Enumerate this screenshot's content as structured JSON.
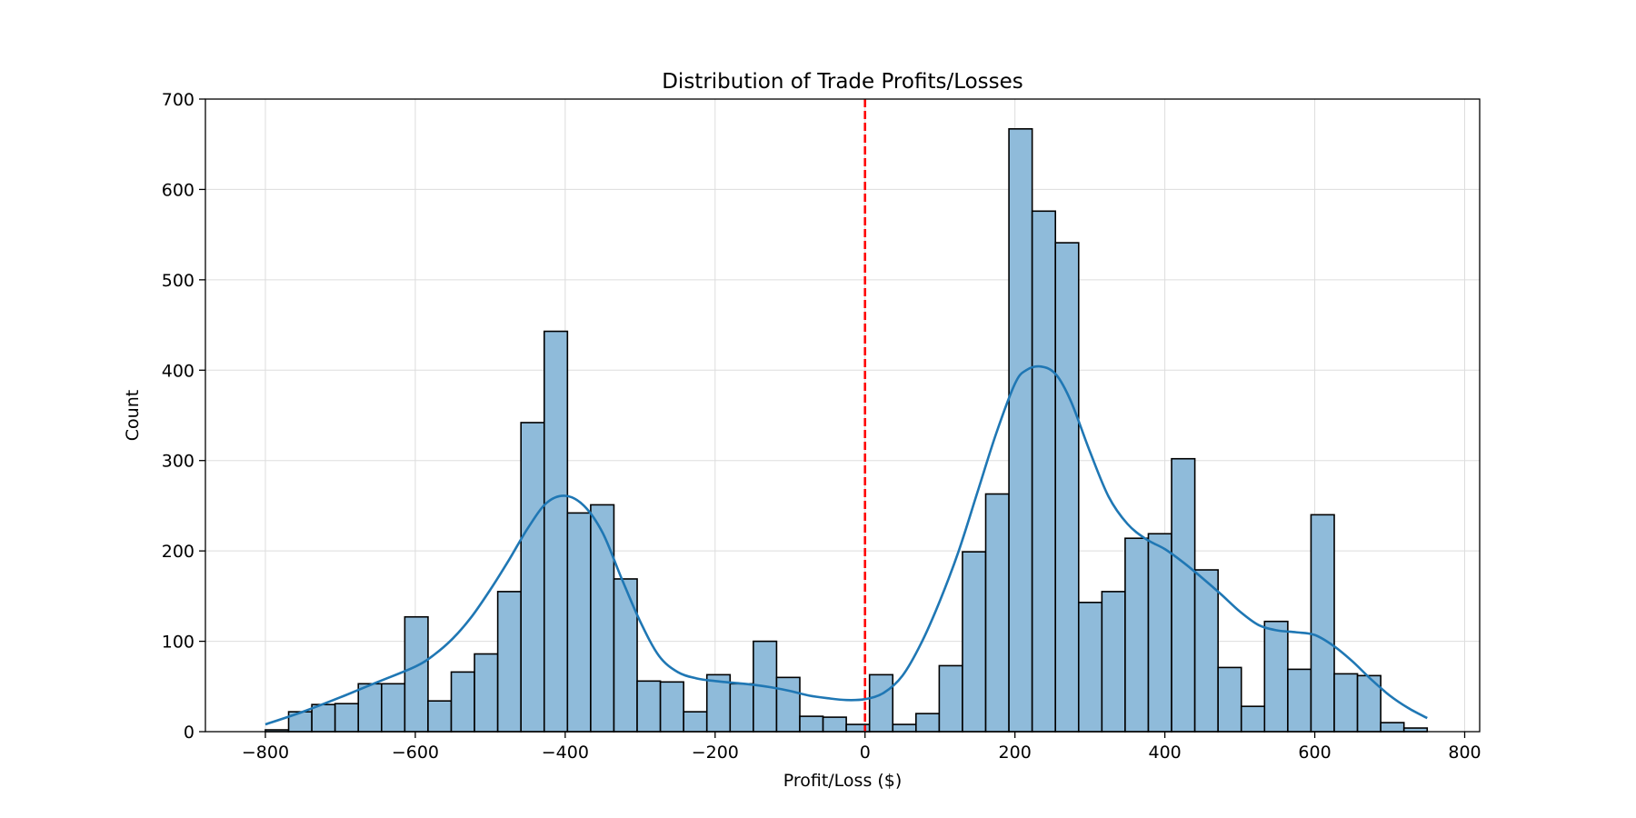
{
  "chart_data": {
    "type": "bar",
    "title": "Distribution of Trade Profits/Losses",
    "xlabel": "Profit/Loss ($)",
    "ylabel": "Count",
    "xlim": [
      -880,
      820
    ],
    "ylim": [
      0,
      700
    ],
    "x_ticks": [
      -800,
      -600,
      -400,
      -200,
      0,
      200,
      400,
      600,
      800
    ],
    "x_tick_labels": [
      "−800",
      "−600",
      "−400",
      "−200",
      "0",
      "200",
      "400",
      "600",
      "800"
    ],
    "y_ticks": [
      0,
      100,
      200,
      300,
      400,
      500,
      600,
      700
    ],
    "y_tick_labels": [
      "0",
      "100",
      "200",
      "300",
      "400",
      "500",
      "600",
      "700"
    ],
    "grid": true,
    "bin_start": -800,
    "bin_width": 31,
    "counts": [
      2,
      22,
      30,
      31,
      53,
      53,
      127,
      34,
      66,
      86,
      155,
      342,
      443,
      242,
      251,
      169,
      56,
      55,
      22,
      63,
      53,
      100,
      60,
      17,
      16,
      8,
      63,
      8,
      20,
      73,
      199,
      263,
      667,
      576,
      541,
      143,
      155,
      214,
      219,
      302,
      179,
      71,
      28,
      122,
      69,
      240,
      64,
      62,
      10,
      4
    ],
    "bar_color": "#8fbbda",
    "bar_edge_color": "#000000",
    "kde": {
      "color": "#1f77b4",
      "x": [
        -800,
        -750,
        -700,
        -650,
        -600,
        -575,
        -550,
        -525,
        -500,
        -475,
        -450,
        -425,
        -400,
        -375,
        -350,
        -325,
        -300,
        -275,
        -250,
        -225,
        -200,
        -175,
        -150,
        -125,
        -100,
        -75,
        -50,
        -25,
        0,
        25,
        50,
        75,
        100,
        125,
        150,
        175,
        200,
        215,
        235,
        255,
        275,
        300,
        325,
        350,
        375,
        400,
        425,
        450,
        475,
        500,
        525,
        550,
        575,
        600,
        625,
        650,
        675,
        700,
        725,
        750
      ],
      "y": [
        8,
        22,
        38,
        55,
        72,
        85,
        103,
        127,
        157,
        190,
        225,
        253,
        261,
        250,
        220,
        170,
        122,
        84,
        66,
        59,
        56,
        54,
        52,
        49,
        45,
        40,
        37,
        35,
        36,
        43,
        62,
        98,
        145,
        200,
        265,
        330,
        385,
        400,
        404,
        395,
        365,
        310,
        260,
        230,
        213,
        202,
        187,
        170,
        152,
        133,
        118,
        112,
        110,
        107,
        95,
        78,
        58,
        40,
        26,
        15
      ]
    },
    "reference_line": {
      "x": 0,
      "color": "#ff0000",
      "style": "dashed"
    }
  }
}
